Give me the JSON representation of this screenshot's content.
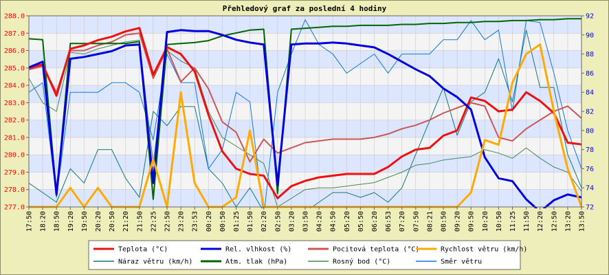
{
  "chart_data": {
    "type": "line",
    "title": "Přehledový graf za poslední 4 hodiny",
    "x": [
      "17:50",
      "18:20",
      "18:50",
      "19:20",
      "19:50",
      "20:20",
      "20:50",
      "21:20",
      "21:50",
      "22:25",
      "22:50",
      "23:20",
      "23:53",
      "00:20",
      "00:50",
      "01:25",
      "01:50",
      "02:20",
      "02:50",
      "03:20",
      "03:50",
      "04:20",
      "04:50",
      "05:20",
      "05:50",
      "06:20",
      "06:53",
      "07:20",
      "07:50",
      "08:21",
      "08:50",
      "09:20",
      "09:50",
      "10:20",
      "10:50",
      "11:25",
      "11:50",
      "12:20",
      "12:50",
      "13:20",
      "13:50"
    ],
    "y_left": {
      "ylim": [
        277.0,
        288.0
      ],
      "ticks": [
        "277.0",
        "278.0",
        "279.0",
        "280.0",
        "281.0",
        "282.0",
        "283.0",
        "284.0",
        "285.0",
        "286.0",
        "287.0",
        "288.0"
      ],
      "color": "#ff0000"
    },
    "y_right": {
      "ylim": [
        72,
        92
      ],
      "ticks": [
        "72",
        "74",
        "76",
        "78",
        "80",
        "82",
        "84",
        "86",
        "88",
        "90",
        "92"
      ],
      "color": "#0000ff"
    },
    "grid": true,
    "legend_position": "bottom",
    "series": [
      {
        "name": "Teplota (°C)",
        "axis": "left",
        "color": "#ee1111",
        "width": 3,
        "values": [
          285.0,
          285.2,
          283.4,
          286.1,
          286.3,
          286.6,
          286.8,
          287.1,
          287.3,
          284.6,
          286.2,
          285.8,
          284.8,
          282.3,
          280.2,
          279.2,
          278.9,
          278.8,
          277.5,
          278.2,
          278.5,
          278.7,
          278.8,
          278.9,
          278.9,
          278.9,
          279.3,
          279.9,
          280.3,
          280.4,
          281.1,
          281.4,
          283.3,
          283.1,
          282.5,
          282.6,
          283.6,
          283.1,
          282.4,
          280.7,
          280.6
        ]
      },
      {
        "name": "Rel. vlhkost (%)",
        "axis": "right",
        "color": "#0000dd",
        "width": 3,
        "values": [
          86.6,
          87.2,
          73.3,
          87.5,
          87.7,
          88.0,
          88.3,
          88.9,
          89.0,
          74.5,
          90.3,
          90.5,
          90.4,
          90.4,
          90.0,
          89.5,
          89.2,
          89.0,
          74.3,
          89.0,
          89.1,
          89.1,
          89.2,
          89.1,
          88.9,
          88.7,
          88.0,
          87.2,
          86.4,
          85.7,
          84.4,
          83.5,
          82.2,
          77.2,
          75.0,
          74.7,
          72.8,
          71.5,
          72.7,
          73.3,
          73.0
        ]
      },
      {
        "name": "Pocitová teplota (°C)",
        "axis": "left",
        "color": "#cc5555",
        "width": 2,
        "values": [
          284.9,
          285.1,
          283.6,
          286.0,
          286.0,
          286.3,
          286.5,
          286.9,
          287.0,
          284.4,
          286.1,
          284.2,
          285.0,
          283.8,
          281.9,
          281.3,
          279.6,
          280.9,
          280.1,
          280.4,
          280.7,
          280.8,
          280.9,
          280.9,
          280.9,
          281.0,
          281.2,
          281.5,
          281.7,
          282.0,
          282.4,
          282.7,
          283.0,
          282.8,
          281.0,
          280.8,
          281.5,
          282.0,
          282.5,
          282.8,
          282.1
        ]
      },
      {
        "name": "Rychlost větru (km/h)",
        "axis": "right",
        "color": "#ffaa00",
        "width": 3,
        "values": [
          72,
          72,
          72,
          74,
          72,
          74,
          72,
          72,
          72,
          77,
          72,
          84,
          74.5,
          72,
          72,
          73,
          80,
          72,
          72,
          72,
          72,
          72,
          72,
          72,
          72,
          72,
          72,
          72,
          72,
          72,
          72,
          72,
          73.5,
          79,
          78.5,
          85,
          88,
          89,
          82,
          76,
          72
        ]
      },
      {
        "name": "Náraz větru (km/h)",
        "axis": "right",
        "color": "#117777",
        "width": 1,
        "values": [
          74.5,
          73.5,
          72.5,
          76.0,
          74.5,
          78.0,
          78.0,
          75.0,
          73.0,
          82.0,
          80.5,
          82.5,
          82.5,
          76.0,
          74.5,
          72.0,
          74.0,
          71.5,
          71.0,
          70.0,
          71.5,
          72.5,
          73.5,
          73.5,
          73.0,
          73.5,
          72.5,
          74.0,
          77.5,
          81.0,
          84.5,
          79.5,
          83.0,
          84.0,
          87.5,
          83.0,
          90.5,
          84.5,
          84.5,
          77.5,
          74.0
        ]
      },
      {
        "name": "Atm. tlak (hPa)",
        "axis": "right",
        "color": "#006600",
        "width": 2,
        "values": [
          89.6,
          89.5,
          73.2,
          89.1,
          89.1,
          89.1,
          89.1,
          89.1,
          89.3,
          72.8,
          89.0,
          89.1,
          89.2,
          89.4,
          89.9,
          90.2,
          90.5,
          90.6,
          73.4,
          90.6,
          90.7,
          90.8,
          90.9,
          90.9,
          91.0,
          91.0,
          91.0,
          91.1,
          91.1,
          91.2,
          91.2,
          91.3,
          91.3,
          91.4,
          91.4,
          91.5,
          91.5,
          91.6,
          91.6,
          91.7,
          91.7
        ]
      },
      {
        "name": "Rosný bod (°C)",
        "axis": "left",
        "color": "#448855",
        "width": 1,
        "values": [
          284.4,
          283.0,
          282.5,
          285.9,
          285.8,
          286.1,
          286.3,
          286.5,
          286.6,
          279.5,
          286.0,
          285.4,
          285.0,
          282.5,
          281.0,
          280.5,
          280.0,
          279.5,
          277.0,
          277.5,
          278.0,
          278.1,
          278.1,
          278.2,
          278.3,
          278.4,
          278.7,
          279.0,
          279.4,
          279.5,
          279.7,
          279.8,
          279.9,
          280.3,
          280.1,
          279.8,
          280.4,
          279.8,
          279.3,
          279.0,
          277.9
        ]
      },
      {
        "name": "Směr větru",
        "axis": "right",
        "color": "#1177dd",
        "width": 1,
        "values": [
          84,
          85,
          73,
          84,
          84,
          84,
          85,
          85,
          84,
          79,
          88,
          85,
          85,
          76,
          78,
          84,
          83,
          71,
          84,
          88,
          91.6,
          89,
          88,
          86,
          87,
          88,
          86,
          88,
          88,
          88,
          89.5,
          89.5,
          91.5,
          89.5,
          90.5,
          82,
          91.5,
          91.3,
          86,
          80,
          76
        ]
      }
    ],
    "x_ticks": [
      "17:50",
      "18:20",
      "18:50",
      "19:20",
      "19:50",
      "20:20",
      "20:50",
      "21:20",
      "21:50",
      "22:25",
      "22:50",
      "23:20",
      "23:53",
      "00:20",
      "00:50",
      "01:25",
      "01:50",
      "02:20",
      "02:50",
      "03:20",
      "03:50",
      "04:20",
      "04:50",
      "05:20",
      "05:50",
      "06:20",
      "06:53",
      "07:20",
      "07:50",
      "08:21",
      "08:50",
      "09:20",
      "09:50",
      "10:20",
      "10:50",
      "11:25",
      "11:50",
      "12:20",
      "12:50",
      "13:20",
      "13:50"
    ]
  }
}
